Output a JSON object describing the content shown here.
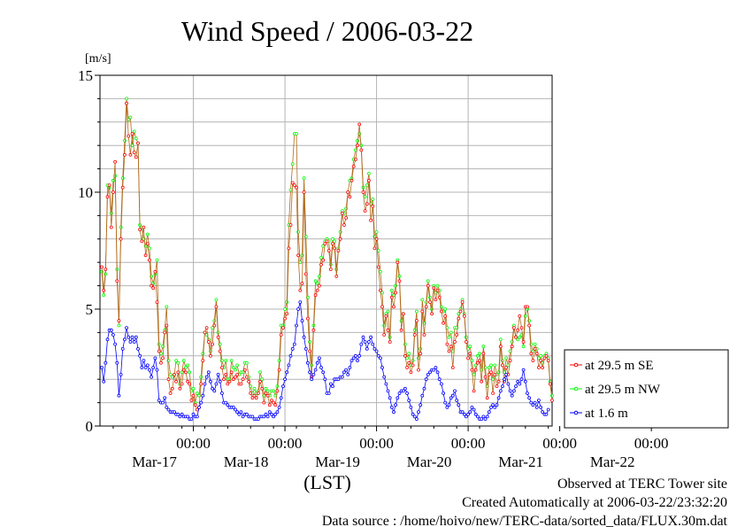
{
  "chart_data": {
    "type": "line",
    "title": "Wind Speed / 2006-03-22",
    "ylabel": "[m/s]",
    "xlabel": "(LST)",
    "ylim": [
      0,
      15
    ],
    "yticks": [
      0,
      5,
      10,
      15
    ],
    "xlim": [
      "2006-03-16T00:00",
      "2006-03-22T00:00"
    ],
    "time_step_hours": 0.5,
    "xtick_time_label": "00:00",
    "xtick_date_labels": [
      "Mar-17",
      "Mar-18",
      "Mar-19",
      "Mar-20",
      "Mar-21",
      "Mar-22"
    ],
    "grid": true,
    "legend_position": "right",
    "series": [
      {
        "name": "at 29.5 m SE",
        "color": "#ff0000",
        "values": [
          6.8,
          5.8,
          6.7,
          9.8,
          10.3,
          8.5,
          10.0,
          11.3,
          6.2,
          4.5,
          8.0,
          10.2,
          11.6,
          13.8,
          12.4,
          11.6,
          12.5,
          11.7,
          11.5,
          12.1,
          8.4,
          7.9,
          8.5,
          7.3,
          7.8,
          7.1,
          6.0,
          5.9,
          6.6,
          5.3,
          3.2,
          2.7,
          2.9,
          4.0,
          4.3,
          2.0,
          1.4,
          1.6,
          2.2,
          1.9,
          2.3,
          1.6,
          1.8,
          2.4,
          2.3,
          1.9,
          1.8,
          1.1,
          1.3,
          0.9,
          0.7,
          0.8,
          1.8,
          2.8,
          4.0,
          4.2,
          3.6,
          3.0,
          3.5,
          4.3,
          5.1,
          3.8,
          3.2,
          2.5,
          2.0,
          2.2,
          1.8,
          1.9,
          2.3,
          2.0,
          2.1,
          2.2,
          1.8,
          1.8,
          2.0,
          2.4,
          2.1,
          1.9,
          1.4,
          1.2,
          1.3,
          1.2,
          1.4,
          1.9,
          1.6,
          1.0,
          1.4,
          1.3,
          0.9,
          1.1,
          1.0,
          0.9,
          1.5,
          2.4,
          3.9,
          4.2,
          4.6,
          4.8,
          7.6,
          8.6,
          10.4,
          10.3,
          10.2,
          7.3,
          5.8,
          6.1,
          10.0,
          6.5,
          4.6,
          3.2,
          2.1,
          4.1,
          5.6,
          5.8,
          6.0,
          6.9,
          7.1,
          7.8,
          7.9,
          7.5,
          6.7,
          7.8,
          7.6,
          6.4,
          7.5,
          8.0,
          9.1,
          8.6,
          8.9,
          10.0,
          9.8,
          10.5,
          11.1,
          11.4,
          12.0,
          12.9,
          11.8,
          10.0,
          9.2,
          9.5,
          10.5,
          8.8,
          9.4,
          7.6,
          8.0,
          6.8,
          5.8,
          5.1,
          3.9,
          4.7,
          4.1,
          3.6,
          5.5,
          5.1,
          5.7,
          7.0,
          6.2,
          4.1,
          4.8,
          3.0,
          2.5,
          2.7,
          2.3,
          2.6,
          3.9,
          4.5,
          2.4,
          3.1,
          4.9,
          3.9,
          5.1,
          6.0,
          5.3,
          4.8,
          5.9,
          5.4,
          5.8,
          5.5,
          4.9,
          4.4,
          4.7,
          3.5,
          3.2,
          3.4,
          2.5,
          3.6,
          3.9,
          4.6,
          4.9,
          5.3,
          4.7,
          3.6,
          2.9,
          3.1,
          2.4,
          1.5,
          2.4,
          2.7,
          2.8,
          1.9,
          3.1,
          2.1,
          1.2,
          2.2,
          2.3,
          1.4,
          2.2,
          1.7,
          1.9,
          3.4,
          2.6,
          1.9,
          2.5,
          2.2,
          2.8,
          3.4,
          4.2,
          3.8,
          4.1,
          4.7,
          4.2,
          3.6,
          5.1,
          5.1,
          4.3,
          3.1,
          2.8,
          3.3,
          3.1,
          2.5,
          2.8,
          2.5,
          2.9,
          3.0,
          2.8,
          1.8,
          1.1
        ]
      },
      {
        "name": "at 29.5 m NW",
        "color": "#00ff00",
        "values": [
          6.6,
          5.6,
          6.5,
          10.3,
          10.2,
          9.1,
          10.5,
          10.7,
          6.7,
          4.3,
          8.5,
          10.6,
          12.2,
          14.0,
          13.1,
          13.2,
          12.0,
          12.6,
          12.3,
          12.1,
          8.6,
          8.5,
          8.0,
          7.7,
          8.2,
          7.6,
          6.4,
          6.1,
          6.5,
          7.1,
          3.5,
          3.1,
          3.4,
          4.1,
          5.1,
          2.8,
          2.2,
          2.1,
          2.2,
          2.8,
          2.7,
          1.8,
          2.3,
          2.8,
          2.5,
          2.6,
          2.3,
          1.5,
          1.6,
          1.0,
          1.4,
          1.3,
          2.1,
          3.1,
          4.0,
          3.9,
          3.7,
          3.2,
          4.2,
          4.5,
          5.4,
          4.0,
          3.5,
          2.8,
          2.5,
          2.8,
          2.0,
          2.0,
          2.8,
          2.5,
          2.4,
          2.6,
          2.2,
          2.3,
          2.3,
          2.7,
          2.7,
          2.1,
          1.7,
          1.4,
          1.6,
          1.4,
          1.5,
          2.3,
          2.0,
          1.3,
          1.6,
          1.5,
          1.3,
          1.5,
          1.5,
          1.3,
          1.7,
          2.8,
          4.3,
          4.3,
          5.0,
          5.3,
          8.6,
          10.1,
          11.2,
          12.5,
          12.5,
          8.3,
          7.0,
          7.3,
          10.6,
          8.1,
          5.5,
          3.6,
          2.6,
          4.3,
          6.2,
          6.1,
          6.4,
          7.2,
          7.7,
          7.9,
          8.0,
          7.9,
          6.9,
          8.0,
          7.9,
          6.7,
          7.6,
          8.3,
          9.2,
          9.1,
          9.3,
          10.0,
          10.5,
          10.6,
          11.4,
          11.8,
          12.2,
          12.5,
          12.0,
          10.2,
          9.8,
          10.3,
          10.8,
          9.5,
          9.7,
          8.1,
          8.3,
          7.5,
          6.6,
          5.7,
          4.3,
          4.8,
          4.9,
          3.8,
          5.8,
          5.6,
          6.0,
          7.1,
          6.4,
          4.5,
          4.8,
          3.5,
          2.9,
          3.1,
          2.6,
          2.8,
          4.1,
          4.9,
          2.9,
          3.3,
          5.4,
          4.4,
          5.3,
          6.2,
          5.5,
          5.0,
          6.0,
          5.7,
          6.0,
          5.8,
          5.1,
          4.9,
          5.0,
          4.2,
          3.8,
          4.0,
          3.2,
          4.2,
          4.2,
          4.8,
          5.0,
          5.4,
          4.8,
          3.8,
          3.3,
          3.4,
          2.8,
          2.2,
          2.6,
          3.0,
          3.1,
          2.4,
          3.4,
          2.5,
          1.7,
          2.5,
          2.6,
          2.0,
          2.6,
          2.2,
          2.3,
          3.7,
          2.8,
          2.3,
          2.9,
          2.6,
          3.2,
          3.6,
          4.3,
          3.8,
          3.7,
          3.8,
          3.9,
          3.4,
          4.7,
          5.0,
          4.5,
          3.5,
          3.2,
          3.5,
          3.3,
          2.9,
          3.0,
          2.7,
          3.0,
          3.1,
          2.9,
          1.9,
          1.3
        ]
      },
      {
        "name": "at 1.6 m",
        "color": "#0000ff",
        "values": [
          2.5,
          1.9,
          2.7,
          3.7,
          4.1,
          4.1,
          3.9,
          3.5,
          2.7,
          1.3,
          2.2,
          3.3,
          3.7,
          4.2,
          3.8,
          3.6,
          3.8,
          3.6,
          3.8,
          3.3,
          3.0,
          2.5,
          2.8,
          2.5,
          2.6,
          2.4,
          2.1,
          2.5,
          2.9,
          2.4,
          1.1,
          1.0,
          1.0,
          1.2,
          0.8,
          0.7,
          0.6,
          0.6,
          0.6,
          0.5,
          0.5,
          0.4,
          0.5,
          0.4,
          0.4,
          0.4,
          0.3,
          0.3,
          0.5,
          0.4,
          0.4,
          0.8,
          1.0,
          1.3,
          1.8,
          2.1,
          2.3,
          1.9,
          1.6,
          1.5,
          1.8,
          2.2,
          1.9,
          1.4,
          1.0,
          1.0,
          0.9,
          0.8,
          0.8,
          0.8,
          0.7,
          0.6,
          0.5,
          0.6,
          0.4,
          0.5,
          0.5,
          0.4,
          0.4,
          0.4,
          0.3,
          0.3,
          0.3,
          0.4,
          0.4,
          0.4,
          0.5,
          0.4,
          0.6,
          0.5,
          0.4,
          0.5,
          0.6,
          0.8,
          1.2,
          1.7,
          2.0,
          2.3,
          2.6,
          3.0,
          3.3,
          3.5,
          4.3,
          5.0,
          5.3,
          4.5,
          3.8,
          3.3,
          2.7,
          2.3,
          2.0,
          2.2,
          2.4,
          2.7,
          2.9,
          2.5,
          2.3,
          2.0,
          1.4,
          1.4,
          1.8,
          1.7,
          2.0,
          2.0,
          2.0,
          2.1,
          2.1,
          2.3,
          2.4,
          2.2,
          2.5,
          2.8,
          2.9,
          3.0,
          2.8,
          3.0,
          3.5,
          3.8,
          3.6,
          3.3,
          3.6,
          3.8,
          3.5,
          3.3,
          3.2,
          3.0,
          2.9,
          2.5,
          2.1,
          1.8,
          1.5,
          1.2,
          0.8,
          0.6,
          0.9,
          1.2,
          1.4,
          1.5,
          1.5,
          1.6,
          1.4,
          1.1,
          0.8,
          0.5,
          0.4,
          0.3,
          0.6,
          0.9,
          1.3,
          1.6,
          2.0,
          2.2,
          2.3,
          2.4,
          2.4,
          2.5,
          2.3,
          2.0,
          1.8,
          1.4,
          1.0,
          0.8,
          0.9,
          1.2,
          1.3,
          1.5,
          1.1,
          0.9,
          0.6,
          0.6,
          0.5,
          0.4,
          0.5,
          0.6,
          0.8,
          0.7,
          0.5,
          0.4,
          0.3,
          0.3,
          0.4,
          0.3,
          0.4,
          0.6,
          0.8,
          0.9,
          0.8,
          0.9,
          1.2,
          1.5,
          1.7,
          2.0,
          2.2,
          1.8,
          1.5,
          1.3,
          1.5,
          1.7,
          1.9,
          1.8,
          2.0,
          2.4,
          1.9,
          1.4,
          1.2,
          1.0,
          0.9,
          1.0,
          0.8,
          1.1,
          0.8,
          0.6,
          0.5,
          0.5,
          0.7
        ]
      }
    ]
  },
  "footer": {
    "line1": "Observed at TERC Tower site",
    "line2": "Created Automatically at 2006-03-22/23:32:20",
    "line3": "Data source : /home/hoivo/new/TERC-data/sorted_data/FLUX.30m.dat"
  }
}
